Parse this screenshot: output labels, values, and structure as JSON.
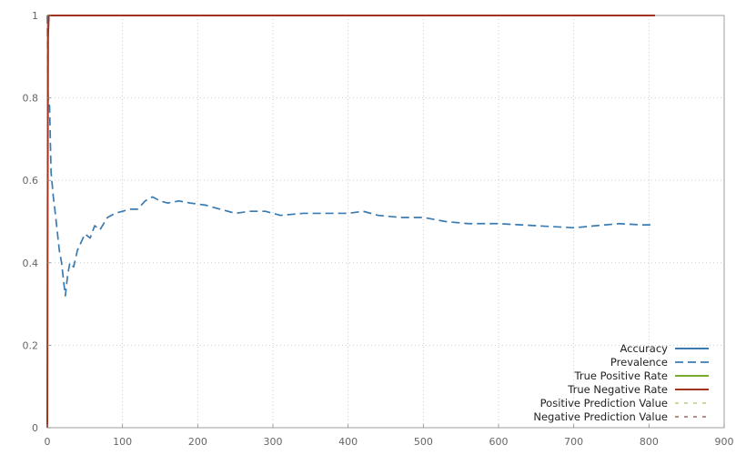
{
  "chart_data": {
    "type": "line",
    "title": "",
    "xlabel": "",
    "ylabel": "",
    "xlim": [
      0,
      900
    ],
    "ylim": [
      0,
      1
    ],
    "x_ticks": [
      "0",
      "100",
      "200",
      "300",
      "400",
      "500",
      "600",
      "700",
      "800",
      "900"
    ],
    "y_ticks": [
      "0",
      "0.2",
      "0.4",
      "0.6",
      "0.8",
      "1"
    ],
    "grid": true,
    "legend_position": "bottom-right",
    "series": [
      {
        "name": "Accuracy",
        "color": "#3b7bb0",
        "dash": "solid",
        "points": [
          [
            0,
            1
          ],
          [
            808,
            1
          ]
        ]
      },
      {
        "name": "Prevalence",
        "color": "#3b7bb0",
        "dash": "long-dash",
        "points": [
          [
            0,
            1
          ],
          [
            1,
            0.8
          ],
          [
            3,
            0.78
          ],
          [
            5,
            0.62
          ],
          [
            8,
            0.56
          ],
          [
            10,
            0.53
          ],
          [
            13,
            0.48
          ],
          [
            16,
            0.43
          ],
          [
            19,
            0.4
          ],
          [
            22,
            0.35
          ],
          [
            24,
            0.32
          ],
          [
            27,
            0.37
          ],
          [
            30,
            0.4
          ],
          [
            35,
            0.39
          ],
          [
            40,
            0.43
          ],
          [
            45,
            0.45
          ],
          [
            50,
            0.47
          ],
          [
            57,
            0.46
          ],
          [
            63,
            0.49
          ],
          [
            70,
            0.48
          ],
          [
            80,
            0.51
          ],
          [
            90,
            0.52
          ],
          [
            100,
            0.525
          ],
          [
            110,
            0.53
          ],
          [
            120,
            0.53
          ],
          [
            130,
            0.55
          ],
          [
            140,
            0.56
          ],
          [
            150,
            0.55
          ],
          [
            160,
            0.545
          ],
          [
            175,
            0.55
          ],
          [
            190,
            0.545
          ],
          [
            210,
            0.54
          ],
          [
            230,
            0.53
          ],
          [
            250,
            0.52
          ],
          [
            270,
            0.525
          ],
          [
            290,
            0.525
          ],
          [
            310,
            0.515
          ],
          [
            340,
            0.52
          ],
          [
            370,
            0.52
          ],
          [
            400,
            0.52
          ],
          [
            420,
            0.525
          ],
          [
            440,
            0.515
          ],
          [
            470,
            0.51
          ],
          [
            500,
            0.51
          ],
          [
            530,
            0.5
          ],
          [
            560,
            0.495
          ],
          [
            600,
            0.495
          ],
          [
            650,
            0.49
          ],
          [
            700,
            0.485
          ],
          [
            730,
            0.49
          ],
          [
            760,
            0.495
          ],
          [
            790,
            0.492
          ],
          [
            808,
            0.492
          ]
        ]
      },
      {
        "name": "True Positive Rate",
        "color": "#77ac30",
        "dash": "solid",
        "points": [
          [
            0,
            1
          ],
          [
            808,
            1
          ]
        ]
      },
      {
        "name": "True Negative Rate",
        "color": "#a2331f",
        "dash": "solid",
        "points": [
          [
            0,
            0
          ],
          [
            0.5,
            0.55
          ],
          [
            1,
            0.95
          ],
          [
            2,
            1
          ],
          [
            808,
            1
          ]
        ]
      },
      {
        "name": "Positive Prediction Value",
        "color": "#a8c46c",
        "dash": "short-dash",
        "points": [
          [
            0,
            1
          ],
          [
            808,
            1
          ]
        ]
      },
      {
        "name": "Negative Prediction Value",
        "color": "#8e4a3e",
        "dash": "short-dash",
        "points": [
          [
            0,
            0
          ],
          [
            0.5,
            0.6
          ],
          [
            1,
            0.95
          ],
          [
            2,
            1
          ],
          [
            808,
            1
          ]
        ]
      }
    ]
  }
}
